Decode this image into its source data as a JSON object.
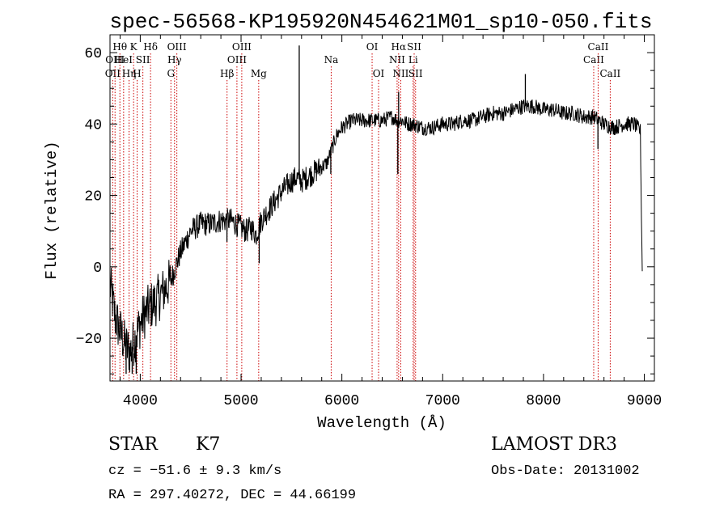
{
  "chart_data": {
    "type": "line",
    "title": "spec-56568-KP195920N454621M01_sp10-050.fits",
    "xlabel": "Wavelength (Å)",
    "ylabel": "Flux (relative)",
    "xlim": [
      3700,
      9100
    ],
    "ylim": [
      -32,
      65
    ],
    "x_ticks": [
      4000,
      5000,
      6000,
      7000,
      8000,
      9000
    ],
    "y_ticks": [
      -20,
      0,
      20,
      40,
      60
    ],
    "series": [
      {
        "name": "flux",
        "color": "#000000",
        "points": [
          [
            3700,
            -5
          ],
          [
            3750,
            -14
          ],
          [
            3800,
            -18
          ],
          [
            3850,
            -22
          ],
          [
            3900,
            -24
          ],
          [
            3950,
            -20
          ],
          [
            4000,
            -16
          ],
          [
            4050,
            -13
          ],
          [
            4100,
            -11
          ],
          [
            4150,
            -10
          ],
          [
            4200,
            -8
          ],
          [
            4250,
            -6
          ],
          [
            4300,
            -4
          ],
          [
            4350,
            0
          ],
          [
            4400,
            4
          ],
          [
            4450,
            7
          ],
          [
            4500,
            10
          ],
          [
            4550,
            11
          ],
          [
            4600,
            12
          ],
          [
            4700,
            12
          ],
          [
            4800,
            13
          ],
          [
            4850,
            13
          ],
          [
            4900,
            13
          ],
          [
            5000,
            11
          ],
          [
            5050,
            10
          ],
          [
            5100,
            11
          ],
          [
            5150,
            9
          ],
          [
            5200,
            13
          ],
          [
            5300,
            17
          ],
          [
            5400,
            21
          ],
          [
            5500,
            24
          ],
          [
            5550,
            25
          ],
          [
            5600,
            24
          ],
          [
            5650,
            25
          ],
          [
            5700,
            26
          ],
          [
            5800,
            28
          ],
          [
            5850,
            29
          ],
          [
            5900,
            33
          ],
          [
            5950,
            37
          ],
          [
            6000,
            39
          ],
          [
            6050,
            40
          ],
          [
            6100,
            41
          ],
          [
            6200,
            41
          ],
          [
            6300,
            41
          ],
          [
            6400,
            41
          ],
          [
            6500,
            42
          ],
          [
            6550,
            41
          ],
          [
            6600,
            41
          ],
          [
            6650,
            40
          ],
          [
            6700,
            40
          ],
          [
            6800,
            39
          ],
          [
            6900,
            39
          ],
          [
            7000,
            40
          ],
          [
            7100,
            40
          ],
          [
            7200,
            41
          ],
          [
            7300,
            41
          ],
          [
            7400,
            42
          ],
          [
            7500,
            43
          ],
          [
            7600,
            43
          ],
          [
            7700,
            44
          ],
          [
            7800,
            45
          ],
          [
            7900,
            45
          ],
          [
            8000,
            44
          ],
          [
            8100,
            44
          ],
          [
            8200,
            43
          ],
          [
            8300,
            43
          ],
          [
            8400,
            42
          ],
          [
            8500,
            42
          ],
          [
            8600,
            40
          ],
          [
            8700,
            39
          ],
          [
            8800,
            40
          ],
          [
            8900,
            40
          ],
          [
            8960,
            38
          ],
          [
            8980,
            -1
          ]
        ],
        "spikes": [
          [
            5577,
            62
          ],
          [
            6555,
            26
          ],
          [
            6563,
            49
          ],
          [
            4860,
            7
          ],
          [
            5180,
            1
          ],
          [
            5890,
            26
          ],
          [
            7820,
            54
          ],
          [
            8540,
            33
          ],
          [
            3860,
            -30
          ],
          [
            3920,
            -30
          ],
          [
            3960,
            -30
          ]
        ]
      }
    ],
    "line_markers": [
      {
        "wavelength": 3727,
        "label": "OII",
        "row": 2
      },
      {
        "wavelength": 3750,
        "label": "OIII",
        "row": 1
      },
      {
        "wavelength": 3798,
        "label": "Hθ",
        "row": 0
      },
      {
        "wavelength": 3835,
        "label": "HeI",
        "row": 1
      },
      {
        "wavelength": 3889,
        "label": "Hη",
        "row": 2
      },
      {
        "wavelength": 3934,
        "label": "K",
        "row": 0
      },
      {
        "wavelength": 3969,
        "label": "H",
        "row": 2
      },
      {
        "wavelength": 4026,
        "label": "SII",
        "row": 1
      },
      {
        "wavelength": 4102,
        "label": "Hδ",
        "row": 0
      },
      {
        "wavelength": 4304,
        "label": "G",
        "row": 2
      },
      {
        "wavelength": 4340,
        "label": "Hγ",
        "row": 1
      },
      {
        "wavelength": 4363,
        "label": "OIII",
        "row": 0
      },
      {
        "wavelength": 4861,
        "label": "Hβ",
        "row": 2
      },
      {
        "wavelength": 4959,
        "label": "OIII",
        "row": 1
      },
      {
        "wavelength": 5007,
        "label": "OIII",
        "row": 0
      },
      {
        "wavelength": 5175,
        "label": "Mg",
        "row": 2
      },
      {
        "wavelength": 5894,
        "label": "Na",
        "row": 1
      },
      {
        "wavelength": 6300,
        "label": "OI",
        "row": 0
      },
      {
        "wavelength": 6364,
        "label": "OI",
        "row": 2
      },
      {
        "wavelength": 6548,
        "label": "NII",
        "row": 1
      },
      {
        "wavelength": 6563,
        "label": "Hα",
        "row": 0
      },
      {
        "wavelength": 6584,
        "label": "NII",
        "row": 2
      },
      {
        "wavelength": 6707,
        "label": "Li",
        "row": 1
      },
      {
        "wavelength": 6717,
        "label": "SII",
        "row": 0
      },
      {
        "wavelength": 6731,
        "label": "SII",
        "row": 2
      },
      {
        "wavelength": 8498,
        "label": "CaII",
        "row": 1
      },
      {
        "wavelength": 8542,
        "label": "CaII",
        "row": 0
      },
      {
        "wavelength": 8662,
        "label": "CaII",
        "row": 2
      }
    ]
  },
  "info": {
    "object_class": "STAR",
    "subclass": "K7",
    "survey": "LAMOST DR3",
    "redshift": "cz = −51.6 ± 9.3 km/s",
    "obs_date": "Obs-Date: 20131002",
    "coords": "RA = 297.40272, DEC =  44.66199"
  }
}
